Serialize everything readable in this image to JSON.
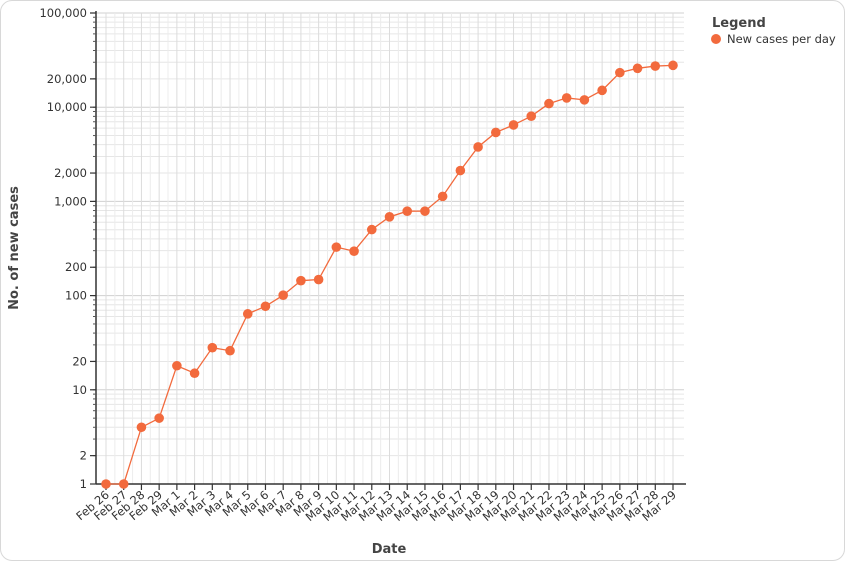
{
  "chart_data": {
    "type": "line",
    "xlabel": "Date",
    "ylabel": "No. of new cases",
    "yscale": "log",
    "ylim": [
      1,
      100000
    ],
    "grid": true,
    "legend_position": "top-right",
    "y_tick_labels": [
      "1",
      "2",
      "10",
      "20",
      "100",
      "200",
      "1,000",
      "2,000",
      "10,000",
      "20,000",
      "100,000"
    ],
    "y_tick_values": [
      1,
      2,
      10,
      20,
      100,
      200,
      1000,
      2000,
      10000,
      20000,
      100000
    ],
    "legend": {
      "title": "Legend"
    },
    "categories": [
      "Feb 26",
      "Feb 27",
      "Feb 28",
      "Feb 29",
      "Mar 1",
      "Mar 2",
      "Mar 3",
      "Mar 4",
      "Mar 5",
      "Mar 6",
      "Mar 7",
      "Mar 8",
      "Mar 9",
      "Mar 10",
      "Mar 11",
      "Mar 12",
      "Mar 13",
      "Mar 14",
      "Mar 15",
      "Mar 16",
      "Mar 17",
      "Mar 18",
      "Mar 19",
      "Mar 20",
      "Mar 21",
      "Mar 22",
      "Mar 23",
      "Mar 24",
      "Mar 25",
      "Mar 26",
      "Mar 27",
      "Mar 28",
      "Mar 29"
    ],
    "series": [
      {
        "name": "New cases per day",
        "color": "#f26a3d",
        "values": [
          1,
          1,
          4,
          5,
          18,
          15,
          28,
          26,
          64,
          77,
          101,
          144,
          148,
          327,
          296,
          502,
          686,
          787,
          788,
          1131,
          2127,
          3785,
          5394,
          6480,
          8024,
          10917,
          12541,
          11963,
          15103,
          23283,
          25877,
          27345,
          27822
        ]
      }
    ]
  }
}
